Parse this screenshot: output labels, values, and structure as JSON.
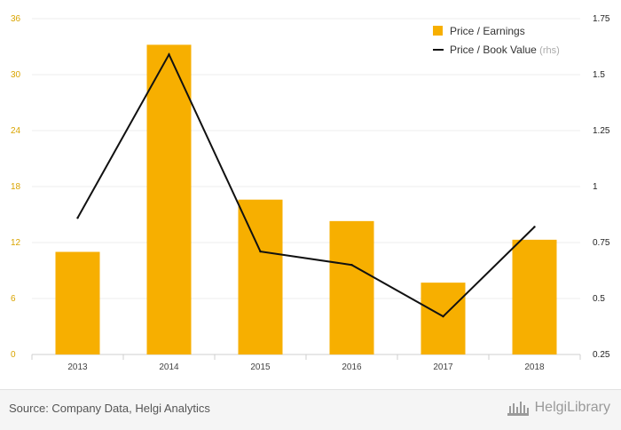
{
  "chart_data": {
    "type": "bar",
    "categories": [
      "2013",
      "2014",
      "2015",
      "2016",
      "2017",
      "2018"
    ],
    "series": [
      {
        "name": "Price / Earnings",
        "type": "bar",
        "axis": "left",
        "color": "#F7AF00",
        "values": [
          11.0,
          33.2,
          16.6,
          14.3,
          7.7,
          12.3
        ]
      },
      {
        "name": "Price / Book Value",
        "type": "line",
        "axis": "right",
        "color": "#111111",
        "values": [
          0.86,
          1.59,
          0.71,
          0.65,
          0.42,
          0.82
        ]
      }
    ],
    "left_axis": {
      "ylim": [
        0,
        36
      ],
      "ticks": [
        "0",
        "6",
        "12",
        "18",
        "24",
        "30",
        "36"
      ]
    },
    "right_axis": {
      "ylim": [
        0.25,
        1.75
      ],
      "ticks": [
        "0.25",
        "0.5",
        "0.75",
        "1",
        "1.25",
        "1.5",
        "1.75"
      ]
    },
    "legend": {
      "position": "top-right",
      "items": [
        {
          "label": "Price / Earnings",
          "note": ""
        },
        {
          "label": "Price / Book Value",
          "note": "(rhs)"
        }
      ]
    },
    "grid": true
  },
  "footer": {
    "source": "Source: Company Data, Helgi Analytics",
    "brand": "HelgiLibrary"
  }
}
